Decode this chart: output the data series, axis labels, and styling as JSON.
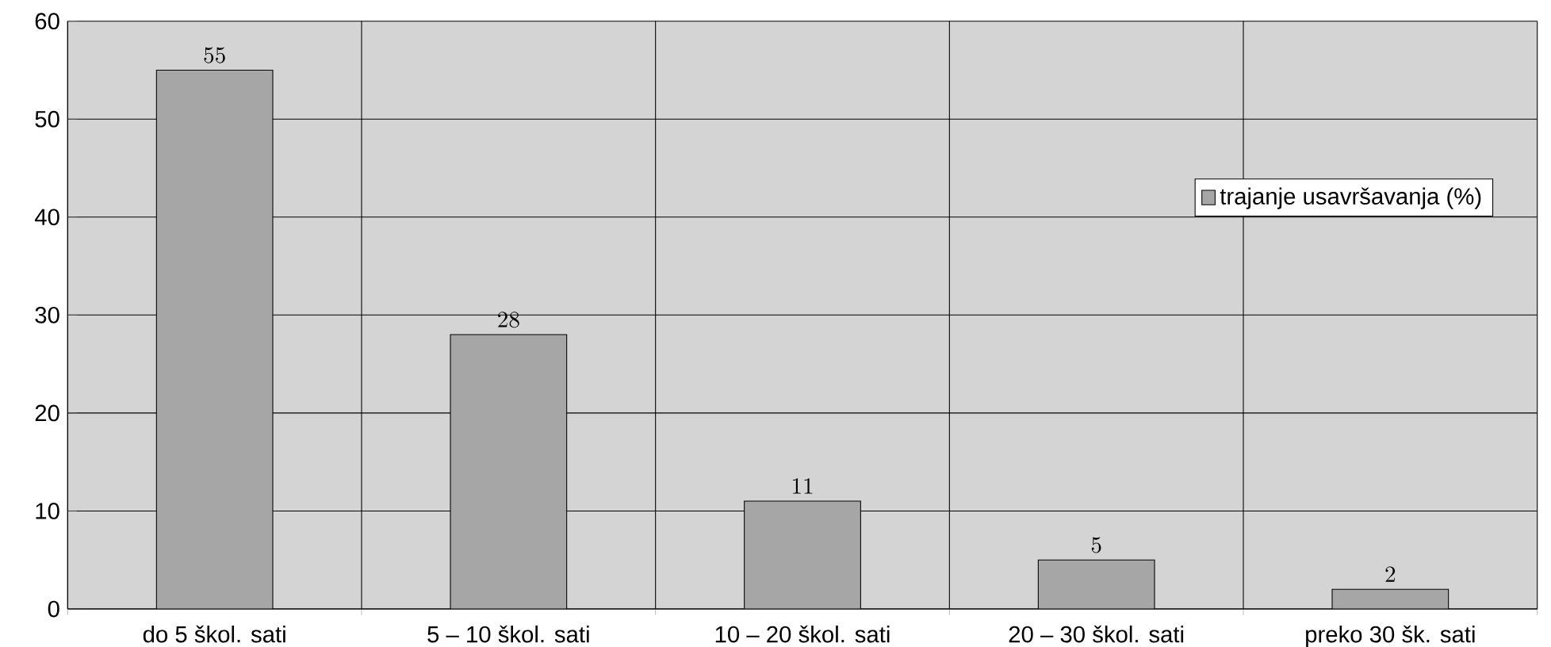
{
  "chart_data": {
    "type": "bar",
    "categories": [
      "do 5 škol. sati",
      "5 – 10 škol. sati",
      "10 – 20 škol. sati",
      "20 – 30 škol. sati",
      "preko 30 šk. sati"
    ],
    "series": [
      {
        "name": "trajanje usavršavanja (%)",
        "color": "#a6a6a6",
        "values": [
          55,
          28,
          11,
          5,
          2
        ]
      }
    ],
    "ylim": [
      0,
      60
    ],
    "yticks": [
      0,
      10,
      20,
      30,
      40,
      50,
      60
    ],
    "grid": true,
    "legend": "right",
    "data_labels": true
  }
}
